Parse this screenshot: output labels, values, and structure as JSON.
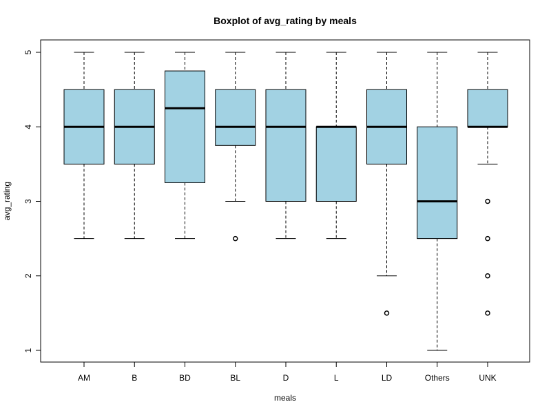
{
  "chart_data": {
    "type": "boxplot",
    "title": "Boxplot of avg_rating by meals",
    "xlabel": "meals",
    "ylabel": "avg_rating",
    "ylim": [
      1,
      5
    ],
    "yticks": [
      "1",
      "2",
      "3",
      "4",
      "5"
    ],
    "box_color": "#a2d2e3",
    "categories": [
      "AM",
      "B",
      "BD",
      "BL",
      "D",
      "L",
      "LD",
      "Others",
      "UNK"
    ],
    "boxes": [
      {
        "category": "AM",
        "whisker_low": 2.5,
        "q1": 3.5,
        "median": 4.0,
        "q3": 4.5,
        "whisker_high": 5.0,
        "outliers": []
      },
      {
        "category": "B",
        "whisker_low": 2.5,
        "q1": 3.5,
        "median": 4.0,
        "q3": 4.5,
        "whisker_high": 5.0,
        "outliers": []
      },
      {
        "category": "BD",
        "whisker_low": 2.5,
        "q1": 3.25,
        "median": 4.25,
        "q3": 4.75,
        "whisker_high": 5.0,
        "outliers": []
      },
      {
        "category": "BL",
        "whisker_low": 3.0,
        "q1": 3.75,
        "median": 4.0,
        "q3": 4.5,
        "whisker_high": 5.0,
        "outliers": [
          2.5
        ]
      },
      {
        "category": "D",
        "whisker_low": 2.5,
        "q1": 3.0,
        "median": 4.0,
        "q3": 4.5,
        "whisker_high": 5.0,
        "outliers": []
      },
      {
        "category": "L",
        "whisker_low": 2.5,
        "q1": 3.0,
        "median": 4.0,
        "q3": 4.0,
        "whisker_high": 5.0,
        "outliers": []
      },
      {
        "category": "LD",
        "whisker_low": 2.0,
        "q1": 3.5,
        "median": 4.0,
        "q3": 4.5,
        "whisker_high": 5.0,
        "outliers": [
          1.5
        ]
      },
      {
        "category": "Others",
        "whisker_low": 1.0,
        "q1": 2.5,
        "median": 3.0,
        "q3": 4.0,
        "whisker_high": 5.0,
        "outliers": []
      },
      {
        "category": "UNK",
        "whisker_low": 3.5,
        "q1": 4.0,
        "median": 4.0,
        "q3": 4.5,
        "whisker_high": 5.0,
        "outliers": [
          3.0,
          2.5,
          2.0,
          1.5
        ]
      }
    ]
  }
}
